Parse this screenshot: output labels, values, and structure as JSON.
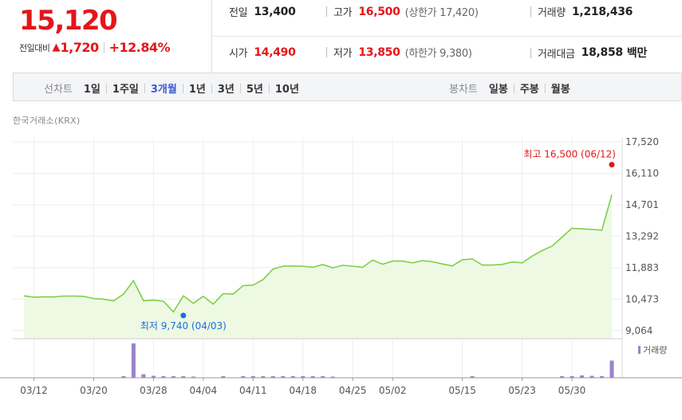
{
  "price": {
    "current": "15,120",
    "change_label": "전일대비",
    "change_symbol": "▲",
    "change_amount": "1,720",
    "change_rate": "+12.84%"
  },
  "stats": {
    "prev_close": {
      "label": "전일",
      "value": "13,400"
    },
    "open": {
      "label": "시가",
      "value": "14,490"
    },
    "high": {
      "label": "고가",
      "value": "16,500",
      "sub": "(상한가 17,420)"
    },
    "low": {
      "label": "저가",
      "value": "13,850",
      "sub": "(하한가 9,380)"
    },
    "volume": {
      "label": "거래량",
      "value": "1,218,436"
    },
    "amount": {
      "label": "거래대금",
      "value": "18,858",
      "unit": "백만"
    }
  },
  "toolbar": {
    "line_title": "선차트",
    "line_items": [
      "1일",
      "1주일",
      "3개월",
      "1년",
      "3년",
      "5년",
      "10년"
    ],
    "active_item": "3개월",
    "candle_title": "봉차트",
    "candle_items": [
      "일봉",
      "주봉",
      "월봉"
    ]
  },
  "source": "한국거래소(KRX)",
  "colors": {
    "up_red": "#e4161a",
    "active_blue": "#3c5ad3",
    "line_green": "#7ed04b",
    "area_green": "#eef9e4",
    "volume_purple": "#9b83c9",
    "low_blue": "#1a6fdc"
  },
  "chart_data": {
    "type": "area",
    "price": {
      "values": [
        10620,
        10560,
        10580,
        10570,
        10610,
        10610,
        10600,
        10500,
        10470,
        10400,
        10700,
        11300,
        10400,
        10430,
        10380,
        9900,
        10620,
        10290,
        10600,
        10250,
        10720,
        10700,
        11080,
        11100,
        11350,
        11820,
        11950,
        11960,
        11950,
        11900,
        12020,
        11880,
        11990,
        11950,
        11900,
        12220,
        12040,
        12180,
        12180,
        12100,
        12200,
        12150,
        12050,
        11960,
        12240,
        12270,
        12000,
        12000,
        12030,
        12140,
        12100,
        12400,
        12650,
        12850,
        13250,
        13650,
        13620,
        13600,
        13560,
        15150
      ],
      "yticks": [
        "17,520",
        "16,110",
        "14,701",
        "13,292",
        "11,883",
        "10,473",
        "9,064"
      ],
      "ylim": [
        8700,
        17700
      ]
    },
    "x_tick_labels": [
      {
        "label": "03/12",
        "index": 1
      },
      {
        "label": "03/20",
        "index": 7
      },
      {
        "label": "03/28",
        "index": 13
      },
      {
        "label": "04/04",
        "index": 18
      },
      {
        "label": "04/11",
        "index": 23
      },
      {
        "label": "04/18",
        "index": 28
      },
      {
        "label": "04/25",
        "index": 33
      },
      {
        "label": "05/02",
        "index": 37
      },
      {
        "label": "05/15",
        "index": 44
      },
      {
        "label": "05/23",
        "index": 50
      },
      {
        "label": "05/30",
        "index": 55
      }
    ],
    "high_annotation": {
      "label": "최고 16,500 (06/12)",
      "value": 16500,
      "index": 59
    },
    "low_annotation": {
      "label": "최저 9,740 (04/03)",
      "value": 9740,
      "index": 16
    },
    "volume": {
      "legend": "거래량",
      "values": [
        0,
        0,
        0,
        0,
        0,
        0,
        0,
        0,
        0,
        0,
        4,
        88,
        9,
        5,
        4,
        4,
        4,
        3,
        0,
        0,
        4,
        0,
        4,
        4,
        4,
        4,
        4,
        4,
        4,
        4,
        4,
        3,
        0,
        0,
        0,
        0,
        0,
        0,
        0,
        0,
        0,
        0,
        0,
        0,
        0,
        4,
        0,
        0,
        0,
        0,
        0,
        0,
        0,
        0,
        4,
        4,
        6,
        5,
        4,
        44
      ],
      "ylim": [
        0,
        100
      ]
    }
  }
}
